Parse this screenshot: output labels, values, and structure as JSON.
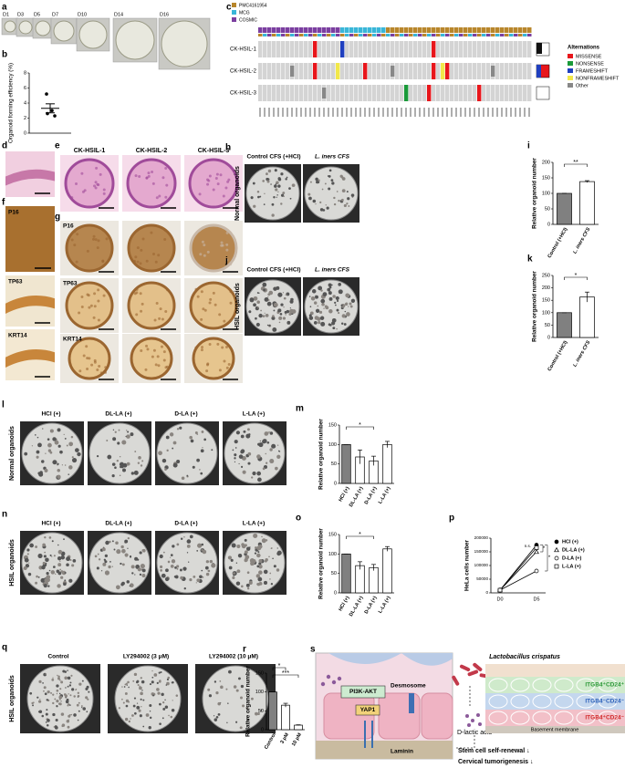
{
  "figure": {
    "panel_labels": {
      "a": "a",
      "c": "c",
      "d": "d",
      "e": "e",
      "f": "f",
      "g": "g",
      "h": "h",
      "j": "j",
      "l": "l",
      "n": "n",
      "q": "q",
      "s": "s"
    },
    "a_days": [
      "D1",
      "D3",
      "D5",
      "D7",
      "D10",
      "D14",
      "D16"
    ],
    "c": {
      "sources": [
        "PMC4161954",
        "MCG",
        "COSMIC"
      ],
      "source_colors": [
        "#b8862b",
        "#39b6d8",
        "#7b3fa0"
      ],
      "samples": [
        "CK-HSIL-1",
        "CK-HSIL-2",
        "CK-HSIL-3"
      ],
      "legend_title": "Alternations",
      "alterations": [
        "MISSENSE",
        "NONSENSE",
        "FRAMESHIFT",
        "NONFRAMESHIFT",
        "Other"
      ],
      "alteration_colors": [
        "#e8161b",
        "#1a9a3a",
        "#1f3fbf",
        "#f2e84a",
        "#888888"
      ]
    },
    "e_headers": [
      "CK-HSIL-1",
      "CK-HSIL-2",
      "CK-HSIL-3"
    ],
    "stains": [
      "P16",
      "TP63",
      "KRT14"
    ],
    "hj_headers": [
      "Control CFS (+HCl)",
      "L. iners CFS"
    ],
    "h_side": "Normal organoids",
    "j_side": "HSIL organoids",
    "ln_headers": [
      "HCl (+)",
      "DL-LA (+)",
      "D-LA (+)",
      "L-LA (+)"
    ],
    "l_side": "Normal organoids",
    "n_side": "HSIL organoids",
    "q_headers": [
      "Control",
      "LY294002 (3 μM)",
      "LY294002 (10 μM)"
    ],
    "q_side": "HSIL organoids",
    "s": {
      "bacteria": "Lactobacillus crispatus",
      "pathway": "PI3K-AKT",
      "desmosome": "Desmosome",
      "yap": "YAP1",
      "laminin": "Laminin",
      "acid": "D-lactic acid",
      "membrane": "Basement membrane",
      "pop1": "ITGB4⁺CD24⁺",
      "pop2": "ITGB4⁻CD24⁻",
      "pop3": "ITGB4⁺CD24⁻",
      "out1": "Stem cell self-renewal ↓",
      "out2": "Cervical tumorigenesis ↓"
    }
  },
  "chart_data": [
    {
      "type": "dot",
      "label": "b",
      "y_label": "Organoid forming efficiency (%)",
      "values": [
        5.2,
        3.0,
        2.6,
        2.3
      ],
      "mean": 3.3,
      "error": 0.6,
      "ylim": [
        0,
        8
      ],
      "yticks": [
        0,
        2,
        4,
        6,
        8
      ]
    },
    {
      "type": "bar",
      "label": "i",
      "y_label": "Relative organoid number",
      "categories": [
        "Control (+HCl)",
        "L. iners CFS"
      ],
      "values": [
        100,
        138
      ],
      "errors": [
        0,
        3
      ],
      "colors": [
        "#808080",
        "#ffffff"
      ],
      "ylim": [
        0,
        200
      ],
      "yticks": [
        0,
        50,
        100,
        150,
        200
      ],
      "annotations": [
        "**"
      ]
    },
    {
      "type": "bar",
      "label": "k",
      "y_label": "Relative organoid number",
      "categories": [
        "Control (+HCl)",
        "L. iners CFS"
      ],
      "values": [
        100,
        163
      ],
      "errors": [
        0,
        20
      ],
      "colors": [
        "#808080",
        "#ffffff"
      ],
      "ylim": [
        0,
        250
      ],
      "yticks": [
        0,
        50,
        100,
        150,
        200,
        250
      ],
      "annotations": [
        "*"
      ]
    },
    {
      "type": "bar",
      "label": "m",
      "y_label": "Relative organoid number",
      "categories": [
        "HCl (+)",
        "DL-LA (+)",
        "D-LA (+)",
        "L-LA (+)"
      ],
      "values": [
        100,
        68,
        58,
        100
      ],
      "errors": [
        0,
        18,
        12,
        8
      ],
      "colors": [
        "#808080",
        "#ffffff",
        "#ffffff",
        "#ffffff"
      ],
      "ylim": [
        0,
        150
      ],
      "yticks": [
        0,
        50,
        100,
        150
      ],
      "annotations": [
        "*"
      ]
    },
    {
      "type": "bar",
      "label": "o",
      "y_label": "Relative organoid number",
      "categories": [
        "HCl (+)",
        "DL-LA (+)",
        "D-LA (+)",
        "L-LA (+)"
      ],
      "values": [
        100,
        70,
        65,
        113
      ],
      "errors": [
        0,
        10,
        8,
        6
      ],
      "colors": [
        "#808080",
        "#ffffff",
        "#ffffff",
        "#ffffff"
      ],
      "ylim": [
        0,
        150
      ],
      "yticks": [
        0,
        50,
        100,
        150
      ],
      "annotations": [
        "*"
      ]
    },
    {
      "type": "line",
      "label": "p",
      "y_label": "HeLa cells number",
      "x": [
        "D0",
        "D5"
      ],
      "ylim": [
        0,
        200000
      ],
      "yticks": [
        0,
        50000,
        100000,
        150000,
        200000
      ],
      "series": [
        {
          "name": "HCl (+)",
          "marker": "circle",
          "filled": true,
          "values": [
            10000,
            175000
          ]
        },
        {
          "name": "DL-LA (+)",
          "marker": "triangle",
          "filled": false,
          "values": [
            10000,
            150000
          ]
        },
        {
          "name": "D-LA (+)",
          "marker": "circle",
          "filled": false,
          "values": [
            10000,
            80000
          ]
        },
        {
          "name": "L-LA (+)",
          "marker": "square",
          "filled": false,
          "values": [
            10000,
            165000
          ]
        }
      ],
      "annotations": [
        "n.s.",
        "*",
        "*"
      ]
    },
    {
      "type": "bar",
      "label": "r",
      "y_label": "Relative organoid number",
      "categories": [
        "Control",
        "3 μM",
        "10 μM"
      ],
      "values": [
        100,
        65,
        12
      ],
      "errors": [
        0,
        5,
        1
      ],
      "colors": [
        "#808080",
        "#ffffff",
        "#ffffff"
      ],
      "ylim": [
        0,
        150
      ],
      "yticks": [
        0,
        50,
        100,
        150
      ],
      "annotations": [
        "*",
        "***"
      ]
    }
  ]
}
